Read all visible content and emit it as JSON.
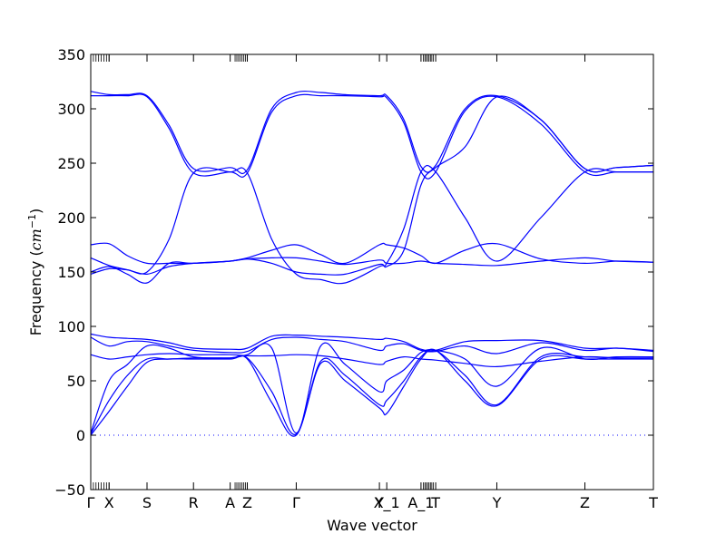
{
  "chart_data": {
    "type": "line",
    "title": "",
    "xlabel": "Wave vector",
    "ylabel_main": "Frequency (",
    "ylabel_unit": "cm",
    "ylabel_exp": "−1",
    "ylabel_close": ")",
    "ylim": [
      -50,
      350
    ],
    "yticks": [
      -50,
      0,
      50,
      100,
      150,
      200,
      250,
      300,
      350
    ],
    "grid": false,
    "line_color": "#0000ff",
    "xlim": [
      0,
      23
    ],
    "x_ticks": [
      {
        "x": 0,
        "label": "Γ"
      },
      {
        "x": 0.75,
        "label": "X"
      },
      {
        "x": 2.3,
        "label": "S"
      },
      {
        "x": 4.2,
        "label": "R"
      },
      {
        "x": 5.7,
        "label": "A"
      },
      {
        "x": 6.4,
        "label": "Z"
      },
      {
        "x": 8.4,
        "label": "Γ"
      },
      {
        "x": 11.8,
        "label": "Y"
      },
      {
        "x": 12.1,
        "label": "X_1"
      },
      {
        "x": 13.5,
        "label": "A_1"
      },
      {
        "x": 14.1,
        "label": "T"
      },
      {
        "x": 16.6,
        "label": "Y"
      },
      {
        "x": 20.2,
        "label": "Z"
      },
      {
        "x": 23,
        "label": "T"
      }
    ],
    "series": [
      {
        "x": [
          0,
          0.75,
          1.5,
          2.3,
          3.2,
          4.2,
          5.7,
          6.4,
          7.4,
          8.4,
          9.4,
          10.4,
          11.8,
          12.1,
          12.8,
          13.5,
          14.1,
          15.3,
          16.6,
          18.4,
          20.2,
          21.5,
          23
        ],
        "y": [
          316,
          313,
          313,
          312,
          285,
          245,
          246,
          244,
          300,
          315,
          315,
          313,
          312,
          312,
          290,
          247,
          248,
          300,
          312,
          290,
          245,
          246,
          248
        ]
      },
      {
        "x": [
          0,
          0.75,
          1.5,
          2.3,
          3.2,
          4.2,
          5.7,
          6.4,
          7.4,
          8.4,
          9.4,
          10.4,
          11.8,
          12.1,
          12.8,
          13.5,
          14.1,
          15.3,
          16.6,
          18.4,
          20.2,
          21.5,
          23
        ],
        "y": [
          312,
          312,
          312,
          311,
          282,
          241,
          242,
          241,
          297,
          312,
          312,
          312,
          311,
          310,
          287,
          242,
          242,
          298,
          311,
          286,
          242,
          242,
          242
        ]
      },
      {
        "x": [
          0,
          0.75,
          1.5,
          2.3,
          3.2,
          4.2,
          5.7,
          6.4,
          7.4,
          8.4,
          9.4,
          10.4,
          11.8,
          12.1,
          12.8,
          13.5,
          14.1,
          15.3,
          16.6,
          18.4,
          20.2,
          21.5,
          23
        ],
        "y": [
          175,
          176,
          165,
          158,
          158,
          158,
          160,
          163,
          170,
          175,
          166,
          158,
          175,
          175,
          172,
          165,
          158,
          170,
          176,
          162,
          158,
          160,
          159
        ]
      },
      {
        "x": [
          0,
          0.75,
          1.5,
          2.3,
          3.2,
          4.2,
          5.7,
          6.4,
          7.4,
          8.4,
          9.4,
          10.4,
          11.8,
          12.1,
          12.8,
          13.5,
          14.1,
          15.3,
          16.6,
          18.4,
          20.2,
          21.5,
          23
        ],
        "y": [
          163,
          156,
          152,
          148,
          155,
          158,
          160,
          162,
          163,
          163,
          160,
          157,
          161,
          158,
          158,
          160,
          158,
          157,
          156,
          160,
          163,
          160,
          159
        ]
      },
      {
        "x": [
          0,
          0.75,
          1.5,
          2.3,
          3.2,
          4.2,
          5.7,
          6.4,
          7.4,
          8.4,
          9.4,
          10.4,
          11.8,
          12.1,
          12.8,
          13.5,
          14.1,
          15.3,
          16.6,
          18.4,
          20.2,
          21.5,
          23
        ],
        "y": [
          150,
          155,
          148,
          140,
          158,
          158,
          160,
          162,
          158,
          150,
          148,
          148,
          157,
          155,
          170,
          230,
          246,
          265,
          311,
          290,
          245,
          246,
          248
        ]
      },
      {
        "x": [
          0,
          0.75,
          1.5,
          2.3,
          3.2,
          4.2,
          5.7,
          6.4,
          7.4,
          8.4,
          9.4,
          10.4,
          11.8,
          12.1,
          12.8,
          13.5,
          14.1,
          15.3,
          16.6,
          18.4,
          20.2,
          21.5,
          23
        ],
        "y": [
          148,
          153,
          152,
          150,
          180,
          241,
          242,
          241,
          180,
          148,
          143,
          140,
          155,
          158,
          190,
          242,
          242,
          200,
          160,
          200,
          242,
          242,
          242
        ]
      },
      {
        "x": [
          0,
          0.75,
          1.5,
          2.3,
          3.2,
          4.2,
          5.7,
          6.4,
          7.4,
          8.4,
          9.4,
          10.4,
          11.8,
          12.1,
          12.8,
          13.5,
          14.1,
          15.3,
          16.6,
          18.4,
          20.2,
          21.5,
          23
        ],
        "y": [
          93,
          90,
          89,
          88,
          85,
          80,
          79,
          80,
          91,
          92,
          91,
          90,
          88,
          89,
          86,
          79,
          78,
          86,
          87,
          87,
          80,
          80,
          78
        ]
      },
      {
        "x": [
          0,
          0.75,
          1.5,
          2.3,
          3.2,
          4.2,
          5.7,
          6.4,
          7.4,
          8.4,
          9.4,
          10.4,
          11.8,
          12.1,
          12.8,
          13.5,
          14.1,
          15.3,
          16.6,
          18.4,
          20.2,
          21.5,
          23
        ],
        "y": [
          90,
          82,
          86,
          86,
          82,
          78,
          76,
          77,
          88,
          90,
          88,
          86,
          78,
          82,
          84,
          78,
          77,
          82,
          75,
          85,
          78,
          80,
          77
        ]
      },
      {
        "x": [
          0,
          0.75,
          1.5,
          2.3,
          3.2,
          4.2,
          5.7,
          6.4,
          7.4,
          8.4,
          9.4,
          10.4,
          11.8,
          12.1,
          12.8,
          13.5,
          14.1,
          15.3,
          16.6,
          18.4,
          20.2,
          21.5,
          23
        ],
        "y": [
          74,
          70,
          72,
          74,
          75,
          74,
          74,
          73,
          73,
          74,
          73,
          70,
          65,
          68,
          72,
          70,
          69,
          66,
          63,
          68,
          72,
          71,
          71
        ]
      },
      {
        "x": [
          0,
          0.75,
          1.5,
          2.3,
          3.2,
          4.2,
          5.7,
          6.4,
          7.4,
          8.4,
          9.4,
          10.4,
          11.8,
          12.1,
          12.8,
          13.5,
          14.1,
          15.3,
          16.6,
          18.4,
          20.2,
          21.5,
          23
        ],
        "y": [
          2,
          50,
          65,
          82,
          80,
          72,
          71,
          74,
          80,
          2,
          82,
          65,
          40,
          50,
          60,
          76,
          78,
          70,
          45,
          80,
          70,
          72,
          72
        ]
      },
      {
        "x": [
          0,
          0.75,
          1.5,
          2.3,
          3.2,
          4.2,
          5.7,
          6.4,
          7.4,
          8.4,
          9.4,
          10.4,
          11.8,
          12.1,
          12.8,
          13.5,
          14.1,
          15.3,
          16.6,
          18.4,
          20.2,
          21.5,
          23
        ],
        "y": [
          1,
          32,
          55,
          70,
          70,
          71,
          71,
          71,
          40,
          1,
          68,
          55,
          28,
          32,
          50,
          72,
          78,
          55,
          28,
          72,
          72,
          71,
          70
        ]
      },
      {
        "x": [
          0,
          0.75,
          1.5,
          2.3,
          3.2,
          4.2,
          5.7,
          6.4,
          7.4,
          8.4,
          9.4,
          10.4,
          11.8,
          12.1,
          12.8,
          13.5,
          14.1,
          15.3,
          16.6,
          18.4,
          20.2,
          21.5,
          23
        ],
        "y": [
          0,
          22,
          45,
          67,
          70,
          70,
          70,
          70,
          30,
          0,
          66,
          50,
          25,
          20,
          45,
          70,
          78,
          50,
          27,
          70,
          70,
          70,
          70
        ]
      }
    ]
  }
}
